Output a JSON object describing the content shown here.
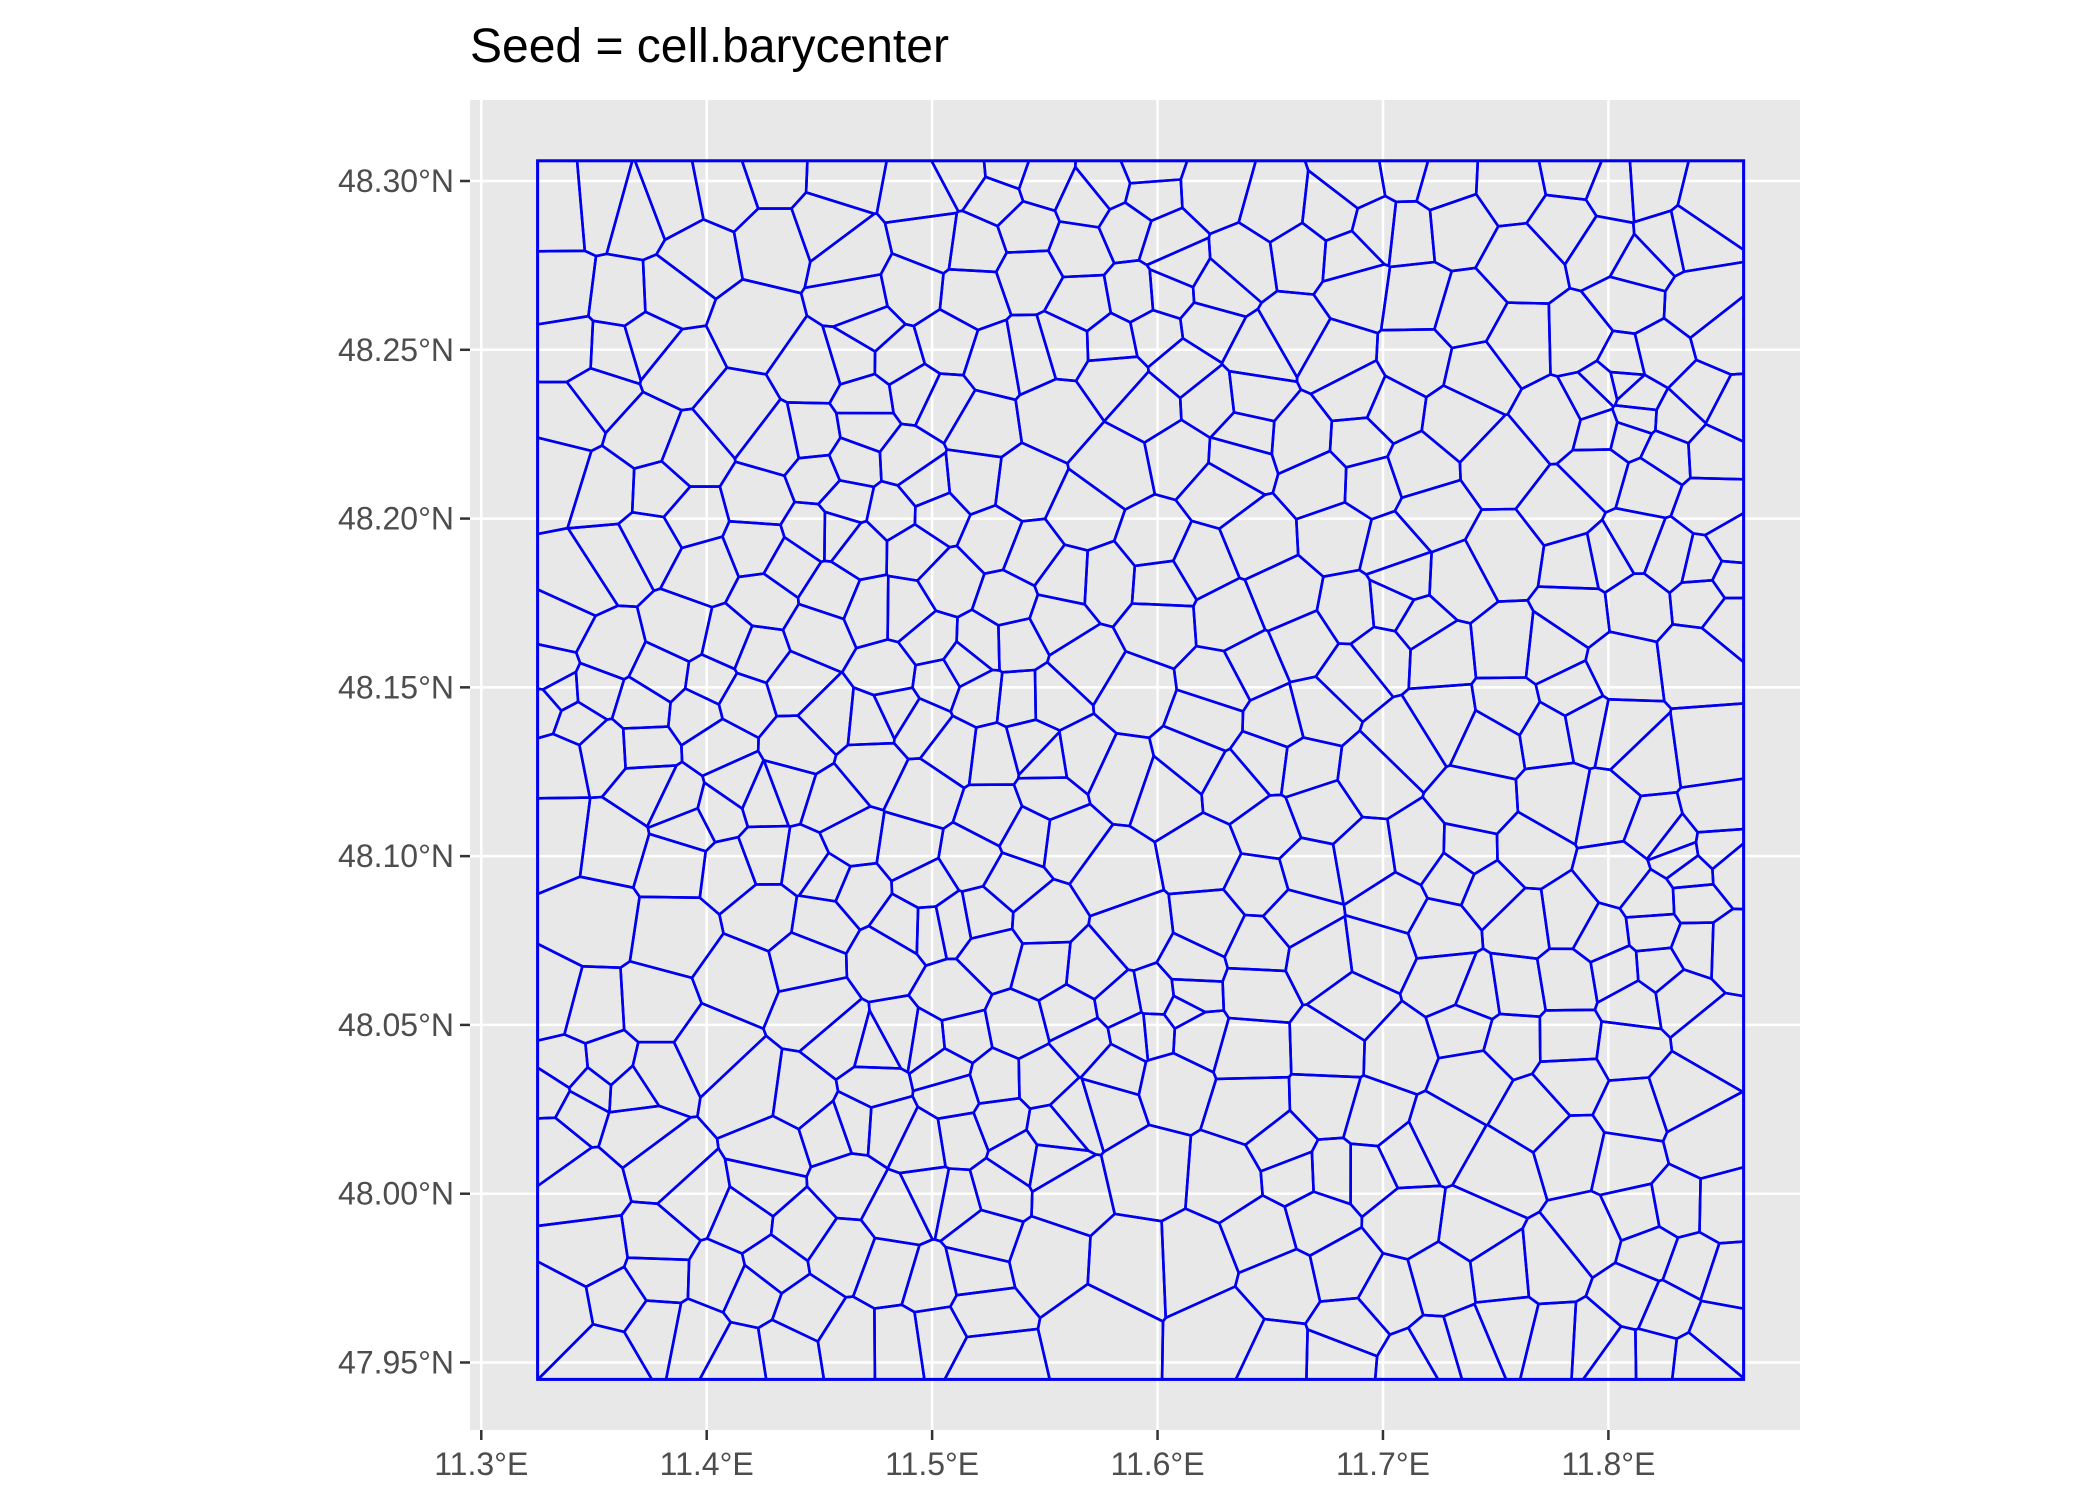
{
  "chart_data": {
    "type": "voronoi-map",
    "title": "Seed = cell.barycenter",
    "xlabel": "",
    "ylabel": "",
    "x_ticks": [
      {
        "value": 11.3,
        "label": "11.3°E"
      },
      {
        "value": 11.4,
        "label": "11.4°E"
      },
      {
        "value": 11.5,
        "label": "11.5°E"
      },
      {
        "value": 11.6,
        "label": "11.6°E"
      },
      {
        "value": 11.7,
        "label": "11.7°E"
      },
      {
        "value": 11.8,
        "label": "11.8°E"
      }
    ],
    "y_ticks": [
      {
        "value": 47.95,
        "label": "47.95°N"
      },
      {
        "value": 48.0,
        "label": "48.00°N"
      },
      {
        "value": 48.05,
        "label": "48.05°N"
      },
      {
        "value": 48.1,
        "label": "48.10°N"
      },
      {
        "value": 48.15,
        "label": "48.15°N"
      },
      {
        "value": 48.2,
        "label": "48.20°N"
      },
      {
        "value": 48.25,
        "label": "48.25°N"
      },
      {
        "value": 48.3,
        "label": "48.30°N"
      }
    ],
    "xlim": [
      11.295,
      11.885
    ],
    "ylim": [
      47.93,
      48.324
    ],
    "bbox": {
      "xmin": 11.325,
      "xmax": 11.86,
      "ymin": 47.945,
      "ymax": 48.306
    },
    "approx_cell_count": 520,
    "grid": true,
    "background_color": "#e8e8e8",
    "grid_color": "#ffffff",
    "line_color": "#0000ee"
  }
}
